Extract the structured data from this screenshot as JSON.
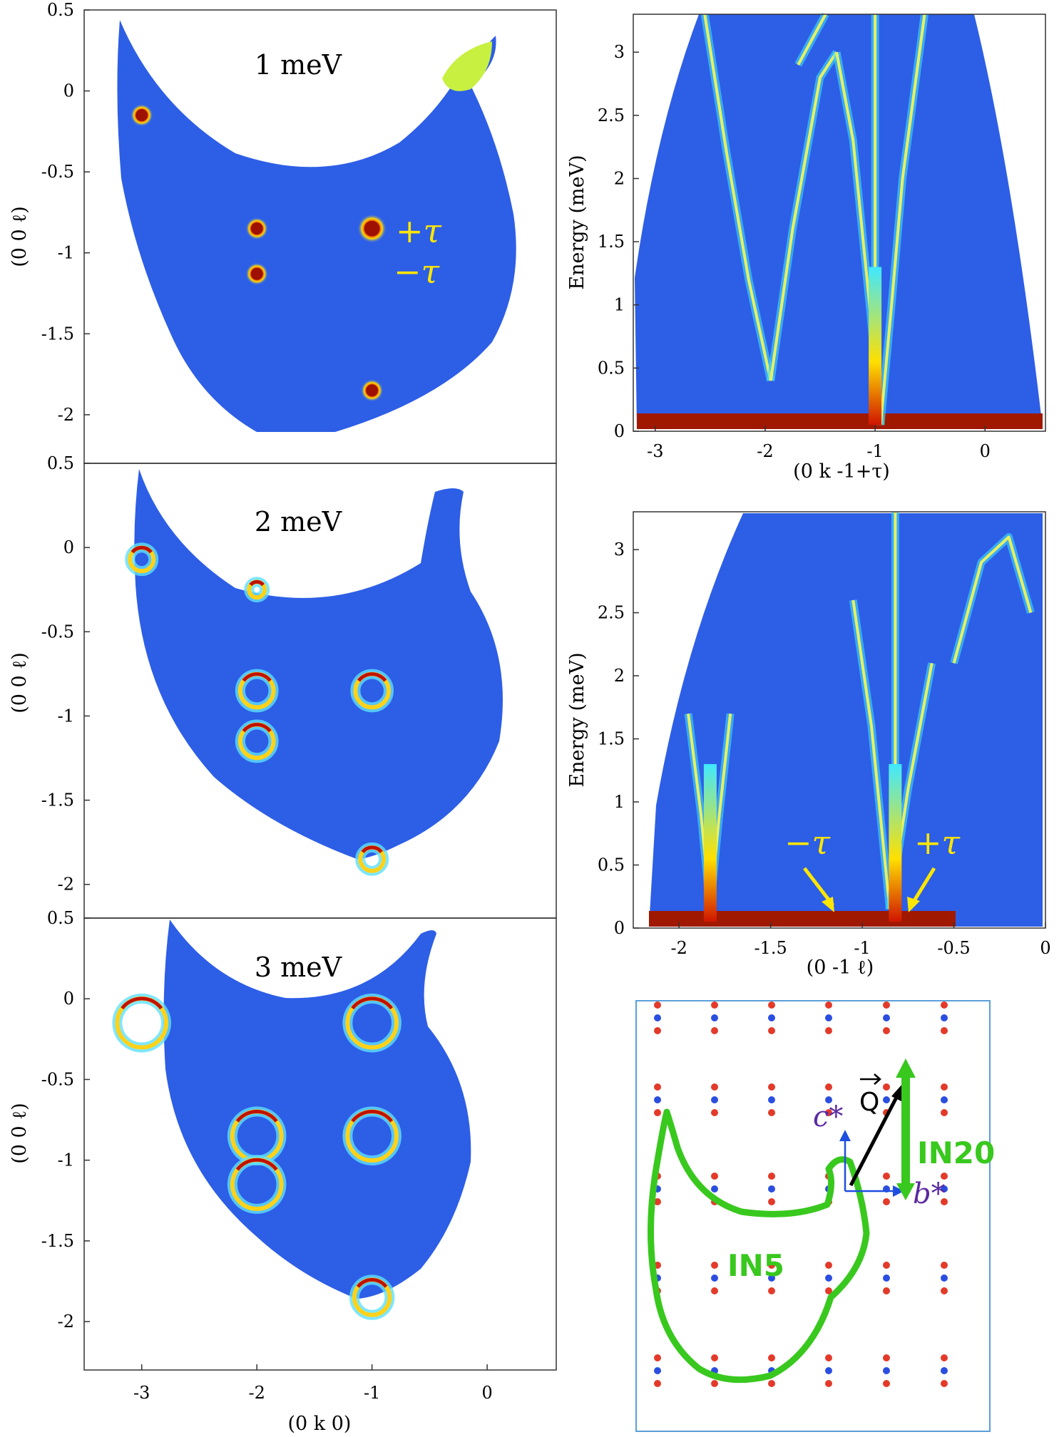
{
  "left_panels": [
    {
      "title": "1 meV"
    },
    {
      "title": "2 meV"
    },
    {
      "title": "3 meV"
    }
  ],
  "annotations": {
    "plus_tau": "+τ",
    "minus_tau": "−τ"
  },
  "schematic": {
    "q_label": "Q",
    "c_star_label": "c*",
    "b_star_label": "b*",
    "in20_label": "IN20",
    "in5_label": "IN5"
  },
  "colors": {
    "background_fill": "#2d5ee6",
    "elastic": "#a01800",
    "highlight": "#ffe600",
    "in_outline": "#39c81e",
    "lattice_red": "#e33a2a",
    "lattice_blue": "#2a4ee0"
  },
  "chart_data": [
    {
      "type": "heatmap",
      "title": "1 meV",
      "xlabel": "",
      "ylabel": "(0 0 ℓ)",
      "xlim": [
        -3.5,
        0.6
      ],
      "ylim": [
        -2.3,
        0.5
      ],
      "xticks": [],
      "yticks": [
        0.5,
        0,
        -0.5,
        -1,
        -1.5,
        -2
      ],
      "yticklabels": [
        "0.5",
        "0",
        "-0.5",
        "-1",
        "-1.5",
        "-2"
      ],
      "spots": [
        {
          "k": -3,
          "l": -0.15,
          "r": 0.07
        },
        {
          "k": -2,
          "l": -0.85,
          "r": 0.07
        },
        {
          "k": -2,
          "l": -1.13,
          "r": 0.07
        },
        {
          "k": -1,
          "l": -0.85,
          "r": 0.09
        },
        {
          "k": -1,
          "l": -1.85,
          "r": 0.07
        }
      ]
    },
    {
      "type": "heatmap",
      "title": "2 meV",
      "xlabel": "",
      "ylabel": "(0 0 ℓ)",
      "xlim": [
        -3.5,
        0.6
      ],
      "ylim": [
        -2.2,
        0.5
      ],
      "xticks": [],
      "yticks": [
        0.5,
        0,
        -0.5,
        -1,
        -1.5,
        -2
      ],
      "yticklabels": [
        "0.5",
        "0",
        "-0.5",
        "-1",
        "-1.5",
        "-2"
      ],
      "rings": [
        {
          "k": -3,
          "l": -0.07,
          "r": 0.12
        },
        {
          "k": -2,
          "l": -0.85,
          "r": 0.17
        },
        {
          "k": -2,
          "l": -1.15,
          "r": 0.17
        },
        {
          "k": -1,
          "l": -0.85,
          "r": 0.17
        },
        {
          "k": -1,
          "l": -1.85,
          "r": 0.12
        },
        {
          "k": -2,
          "l": -0.25,
          "r": 0.08
        }
      ]
    },
    {
      "type": "heatmap",
      "title": "3 meV",
      "xlabel": "(0 k 0)",
      "ylabel": "(0 0 ℓ)",
      "xlim": [
        -3.5,
        0.6
      ],
      "ylim": [
        -2.3,
        0.5
      ],
      "xticks": [
        -3,
        -2,
        -1,
        0
      ],
      "xticklabels": [
        "-3",
        "-2",
        "-1",
        "0"
      ],
      "yticks": [
        0.5,
        0,
        -0.5,
        -1,
        -1.5,
        -2
      ],
      "yticklabels": [
        "0.5",
        "0",
        "-0.5",
        "-1",
        "-1.5",
        "-2"
      ],
      "rings": [
        {
          "k": -1,
          "l": -0.15,
          "r": 0.25
        },
        {
          "k": -1,
          "l": -0.85,
          "r": 0.25
        },
        {
          "k": -2,
          "l": -0.85,
          "r": 0.25
        },
        {
          "k": -2,
          "l": -1.15,
          "r": 0.25
        },
        {
          "k": -3,
          "l": -0.15,
          "r": 0.25
        },
        {
          "k": -1,
          "l": -1.85,
          "r": 0.18
        }
      ]
    },
    {
      "type": "heatmap",
      "xlabel": "(0 k -1+τ)",
      "ylabel": "Energy (meV)",
      "xlim": [
        -3.2,
        0.55
      ],
      "ylim": [
        0,
        3.3
      ],
      "xticks": [
        -3,
        -2,
        -1,
        0
      ],
      "xticklabels": [
        "-3",
        "-2",
        "-1",
        "0"
      ],
      "yticks": [
        0,
        0.5,
        1,
        1.5,
        2,
        2.5,
        3
      ],
      "yticklabels": [
        "0",
        "0.5",
        "1",
        "1.5",
        "2",
        "2.5",
        "3"
      ],
      "branches": [
        {
          "x": [
            -2.55,
            -2.35,
            -2.15,
            -1.95
          ],
          "y": [
            3.3,
            2.2,
            1.2,
            0.4
          ]
        },
        {
          "x": [
            -1.95,
            -1.75,
            -1.5,
            -1.35
          ],
          "y": [
            0.4,
            1.6,
            2.8,
            3.0
          ]
        },
        {
          "x": [
            -1.35,
            -1.2,
            -1.05,
            -0.95
          ],
          "y": [
            3.0,
            2.3,
            1.0,
            0.05
          ]
        },
        {
          "x": [
            -0.95,
            -0.85,
            -0.75,
            -0.55
          ],
          "y": [
            0.05,
            1.0,
            2.0,
            3.3
          ]
        },
        {
          "x": [
            -1.0,
            -1.0
          ],
          "y": [
            0.1,
            3.3
          ]
        },
        {
          "x": [
            -1.45,
            -1.7
          ],
          "y": [
            3.3,
            2.9
          ]
        }
      ]
    },
    {
      "type": "heatmap",
      "xlabel": "(0 -1 ℓ)",
      "ylabel": "Energy (meV)",
      "xlim": [
        -2.25,
        0
      ],
      "ylim": [
        0,
        3.3
      ],
      "xticks": [
        -2,
        -1.5,
        -1,
        -0.5,
        0
      ],
      "xticklabels": [
        "-2",
        "-1.5",
        "-1",
        "-0.5",
        "0"
      ],
      "yticks": [
        0,
        0.5,
        1,
        1.5,
        2,
        2.5,
        3
      ],
      "yticklabels": [
        "0",
        "0.5",
        "1",
        "1.5",
        "2",
        "2.5",
        "3"
      ],
      "branches": [
        {
          "x": [
            -1.95,
            -1.88,
            -1.83
          ],
          "y": [
            1.7,
            0.9,
            0.15
          ]
        },
        {
          "x": [
            -1.83,
            -1.78,
            -1.72
          ],
          "y": [
            0.15,
            0.9,
            1.7
          ]
        },
        {
          "x": [
            -1.05,
            -0.95,
            -0.85
          ],
          "y": [
            2.6,
            1.6,
            0.15
          ]
        },
        {
          "x": [
            -0.85,
            -0.75,
            -0.62
          ],
          "y": [
            0.15,
            1.1,
            2.1
          ]
        },
        {
          "x": [
            -0.5,
            -0.35,
            -0.2,
            -0.08
          ],
          "y": [
            2.1,
            2.9,
            3.1,
            2.5
          ]
        },
        {
          "x": [
            -0.82,
            -0.82
          ],
          "y": [
            0.1,
            3.3
          ]
        }
      ]
    }
  ]
}
